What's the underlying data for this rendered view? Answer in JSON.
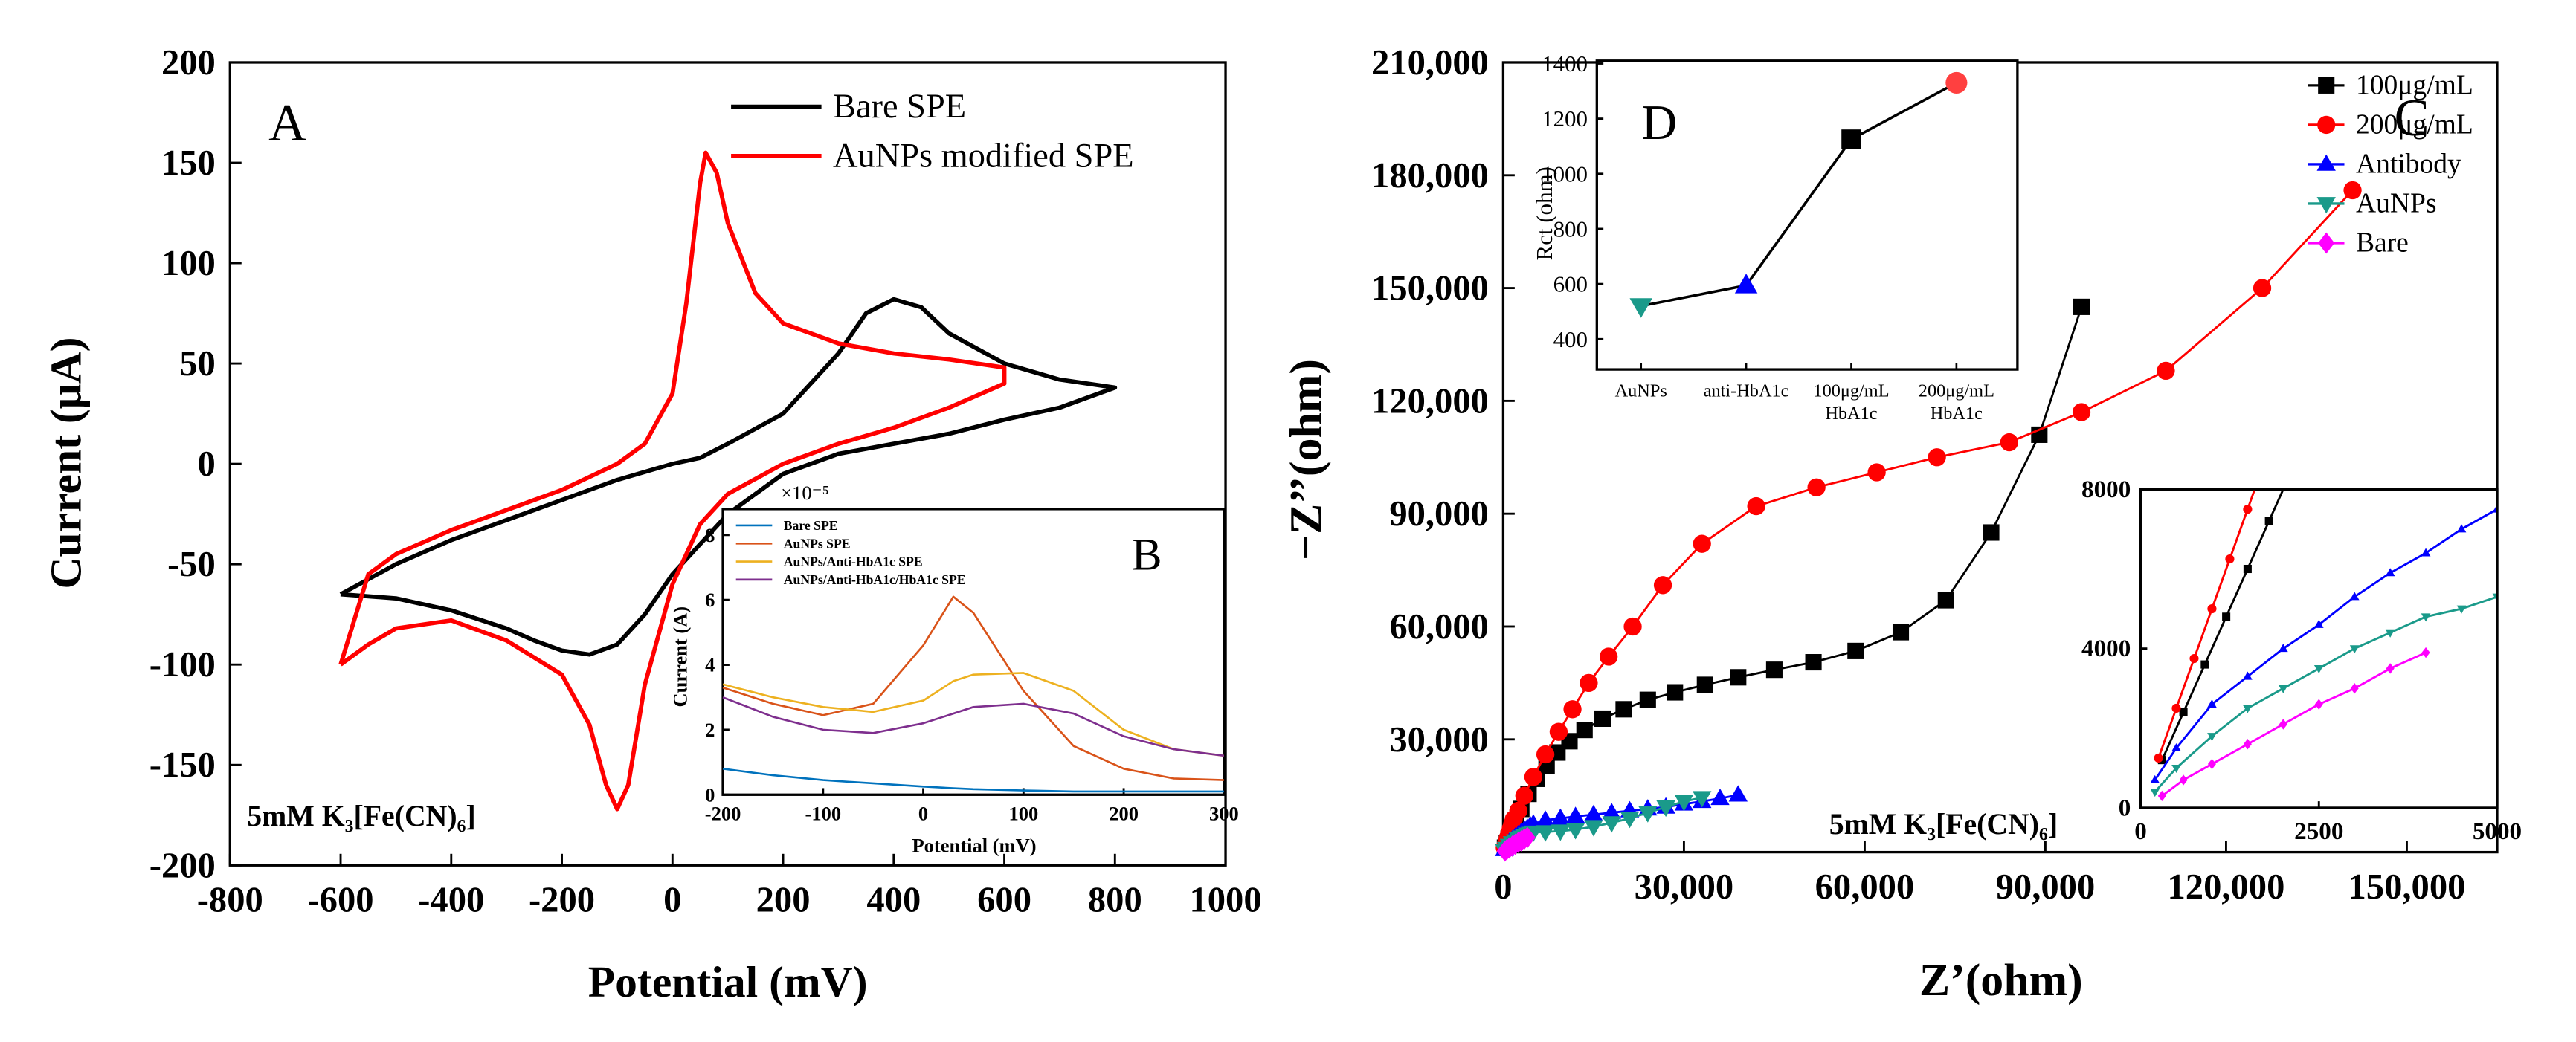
{
  "chart_data": [
    {
      "type": "line",
      "panel_label": "A",
      "annotation": "5mM K₃[Fe(CN)₆]",
      "xlabel": "Potential (mV)",
      "ylabel": "Current (μA)",
      "xlim": [
        -800,
        1000
      ],
      "ylim": [
        -200,
        200
      ],
      "xticks": [
        -800,
        -600,
        -400,
        -200,
        0,
        200,
        400,
        600,
        800,
        1000
      ],
      "yticks": [
        -200,
        -150,
        -100,
        -50,
        0,
        50,
        100,
        150,
        200
      ],
      "series": [
        {
          "name": "Bare SPE",
          "color": "#000000",
          "x": [
            -600,
            -500,
            -400,
            -300,
            -200,
            -100,
            0,
            50,
            100,
            200,
            300,
            350,
            400,
            450,
            500,
            600,
            700,
            800,
            700,
            600,
            500,
            400,
            300,
            200,
            100,
            0,
            -50,
            -100,
            -150,
            -200,
            -250,
            -300,
            -400,
            -500,
            -600
          ],
          "values": [
            -65,
            -50,
            -38,
            -28,
            -18,
            -8,
            0,
            3,
            10,
            25,
            55,
            75,
            82,
            78,
            65,
            50,
            42,
            38,
            28,
            22,
            15,
            10,
            5,
            -5,
            -25,
            -55,
            -75,
            -90,
            -95,
            -93,
            -88,
            -82,
            -73,
            -67,
            -65
          ]
        },
        {
          "name": "AuNPs modified SPE",
          "color": "#ff0000",
          "x": [
            -600,
            -550,
            -500,
            -400,
            -300,
            -200,
            -100,
            -50,
            0,
            25,
            50,
            60,
            80,
            100,
            150,
            200,
            300,
            400,
            500,
            600,
            600,
            500,
            400,
            300,
            200,
            100,
            50,
            0,
            -50,
            -80,
            -100,
            -120,
            -150,
            -200,
            -300,
            -400,
            -500,
            -550,
            -600
          ],
          "values": [
            -100,
            -55,
            -45,
            -33,
            -23,
            -13,
            0,
            10,
            35,
            80,
            140,
            155,
            145,
            120,
            85,
            70,
            60,
            55,
            52,
            48,
            40,
            28,
            18,
            10,
            0,
            -15,
            -30,
            -60,
            -110,
            -160,
            -172,
            -160,
            -130,
            -105,
            -88,
            -78,
            -82,
            -90,
            -100
          ]
        }
      ]
    },
    {
      "type": "line",
      "panel_label": "B",
      "exponent_label": "×10⁻⁵",
      "xlabel": "Potential (mV)",
      "ylabel": "Current (A)",
      "xlim": [
        -200,
        300
      ],
      "ylim": [
        0,
        8.8
      ],
      "xticks": [
        -200,
        -100,
        0,
        100,
        200,
        300
      ],
      "yticks": [
        0,
        2,
        4,
        6,
        8
      ],
      "series": [
        {
          "name": "Bare SPE",
          "color": "#0072bd",
          "x": [
            -200,
            -150,
            -100,
            -50,
            0,
            30,
            50,
            100,
            150,
            200,
            250,
            300
          ],
          "values": [
            0.8,
            0.6,
            0.45,
            0.35,
            0.25,
            0.2,
            0.17,
            0.13,
            0.1,
            0.1,
            0.1,
            0.1
          ]
        },
        {
          "name": "AuNPs SPE",
          "color": "#d95319",
          "x": [
            -200,
            -150,
            -100,
            -50,
            0,
            30,
            50,
            100,
            150,
            200,
            250,
            300
          ],
          "values": [
            3.3,
            2.8,
            2.45,
            2.8,
            4.6,
            6.1,
            5.6,
            3.2,
            1.5,
            0.8,
            0.5,
            0.45
          ]
        },
        {
          "name": "AuNPs/Anti-HbA1c SPE",
          "color": "#edb120",
          "x": [
            -200,
            -150,
            -100,
            -50,
            0,
            30,
            50,
            100,
            150,
            200,
            250,
            300
          ],
          "values": [
            3.4,
            3.0,
            2.7,
            2.55,
            2.9,
            3.5,
            3.7,
            3.75,
            3.2,
            2.0,
            1.4,
            1.2
          ]
        },
        {
          "name": "AuNPs/Anti-HbA1c/HbA1c SPE",
          "color": "#7e2f8e",
          "x": [
            -200,
            -150,
            -100,
            -50,
            0,
            30,
            50,
            100,
            150,
            200,
            250,
            300
          ],
          "values": [
            3.0,
            2.4,
            2.0,
            1.9,
            2.2,
            2.5,
            2.7,
            2.8,
            2.5,
            1.8,
            1.4,
            1.2
          ]
        }
      ]
    },
    {
      "type": "line",
      "markers": true,
      "panel_label": "C",
      "annotation": "5mM K₃[Fe(CN)₆]",
      "xlabel": "Z’(ohm)",
      "ylabel": "−Z’’(ohm)",
      "xlim": [
        0,
        165000
      ],
      "ylim": [
        0,
        210000
      ],
      "xticks": [
        0,
        {
          "value": 30000,
          "label": "30,000"
        },
        {
          "value": 60000,
          "label": "60,000"
        },
        {
          "value": 90000,
          "label": "90,000"
        },
        {
          "value": 120000,
          "label": "120,000"
        },
        {
          "value": 150000,
          "label": "150,000"
        }
      ],
      "yticks": [
        {
          "value": 30000,
          "label": "30,000"
        },
        {
          "value": 60000,
          "label": "60,000"
        },
        {
          "value": 90000,
          "label": "90,000"
        },
        {
          "value": 120000,
          "label": "120,000"
        },
        {
          "value": 150000,
          "label": "150,000"
        },
        {
          "value": 180000,
          "label": "180,000"
        },
        {
          "value": 210000,
          "label": "210,000"
        }
      ],
      "inset": {
        "xlim": [
          0,
          5000
        ],
        "ylim": [
          0,
          8000
        ],
        "xticks": [
          0,
          2500,
          5000
        ],
        "yticks": [
          0,
          4000,
          8000
        ]
      },
      "series": [
        {
          "name": "100μg/mL",
          "color": "#000000",
          "marker": "square",
          "x": [
            300,
            600,
            900,
            1200,
            1500,
            1800,
            2100,
            3000,
            4200,
            5600,
            7200,
            9000,
            11000,
            13500,
            16500,
            20000,
            24000,
            28500,
            33500,
            39000,
            45000,
            51500,
            58500,
            66000,
            73500,
            81000,
            89000,
            96000
          ],
          "values": [
            1200,
            2400,
            3600,
            4800,
            6000,
            7200,
            8400,
            11500,
            15500,
            19500,
            23000,
            26500,
            29500,
            32500,
            35500,
            38000,
            40500,
            42500,
            44500,
            46500,
            48500,
            50500,
            53500,
            58500,
            67000,
            85000,
            111000,
            145000
          ]
        },
        {
          "name": "200μg/mL",
          "color": "#ff0000",
          "marker": "circle",
          "x": [
            250,
            500,
            750,
            1000,
            1250,
            1500,
            1750,
            2500,
            3500,
            5000,
            7000,
            9200,
            11500,
            14200,
            17500,
            21500,
            26500,
            33000,
            42000,
            52000,
            62000,
            72000,
            84000,
            96000,
            110000,
            126000,
            141000
          ],
          "values": [
            1250,
            2500,
            3750,
            5000,
            6250,
            7500,
            8750,
            11000,
            15000,
            20000,
            26000,
            32000,
            38000,
            45000,
            52000,
            60000,
            71000,
            82000,
            92000,
            97000,
            101000,
            105000,
            109000,
            117000,
            128000,
            150000,
            176000
          ]
        },
        {
          "name": "Antibody",
          "color": "#0000ff",
          "marker": "triangle",
          "x": [
            200,
            500,
            1000,
            1500,
            2000,
            2500,
            3000,
            3500,
            4000,
            4500,
            5000,
            7000,
            9500,
            12000,
            15000,
            18000,
            21000,
            24000,
            27000,
            30000,
            33000,
            36000,
            39000
          ],
          "values": [
            700,
            1500,
            2600,
            3300,
            4000,
            4600,
            5300,
            5900,
            6400,
            7000,
            7500,
            8500,
            9000,
            9500,
            10000,
            10500,
            11000,
            11500,
            12000,
            12800,
            13500,
            14300,
            15200
          ]
        },
        {
          "name": "AuNPs",
          "color": "#1a9a8a",
          "marker": "triangle-down",
          "x": [
            200,
            500,
            1000,
            1500,
            2000,
            2500,
            3000,
            3500,
            4000,
            4500,
            5000,
            7000,
            9500,
            12000,
            15000,
            18000,
            21000,
            24000,
            27000,
            30000,
            33000
          ],
          "values": [
            400,
            1000,
            1800,
            2500,
            3000,
            3500,
            4000,
            4400,
            4800,
            5000,
            5300,
            5400,
            5600,
            6000,
            6800,
            7800,
            9000,
            10500,
            12000,
            13500,
            14500
          ]
        },
        {
          "name": "Bare",
          "color": "#ff00ff",
          "marker": "diamond",
          "x": [
            300,
            600,
            1000,
            1500,
            2000,
            2500,
            3000,
            3500,
            4000
          ],
          "values": [
            300,
            700,
            1100,
            1600,
            2100,
            2600,
            3000,
            3500,
            3900
          ]
        }
      ]
    },
    {
      "type": "line",
      "panel_label": "D",
      "ylabel": "Rct (ohm)",
      "categories": [
        [
          "AuNPs"
        ],
        [
          "anti-HbA1c"
        ],
        [
          "100μg/mL",
          "HbA1c"
        ],
        [
          "200μg/mL",
          "HbA1c"
        ]
      ],
      "values": [
        520,
        595,
        1125,
        1330
      ],
      "colors": [
        "#1a9a8a",
        "#0000ff",
        "#000000",
        "#ff4040"
      ],
      "markers": [
        "triangle-down",
        "triangle",
        "square",
        "circle"
      ],
      "line_color": "#000000",
      "ylim": [
        290,
        1410
      ],
      "yticks": [
        400,
        600,
        800,
        1000,
        1200,
        1400
      ]
    }
  ]
}
